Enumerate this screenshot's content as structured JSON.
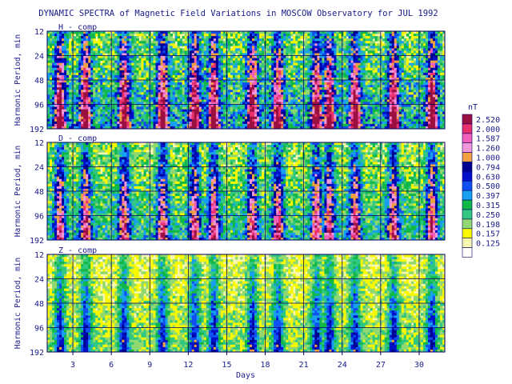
{
  "chart_data": {
    "type": "heatmap",
    "title": "DYNAMIC SPECTRA of Magnetic Field Variations in MOSCOW Observatory for JUL 1992",
    "xlabel": "Days",
    "ylabel": "Harmonic Period, min",
    "x_range": [
      1,
      32
    ],
    "x_ticks": [
      "3",
      "6",
      "9",
      "12",
      "15",
      "18",
      "21",
      "24",
      "27",
      "30"
    ],
    "x_tick_values": [
      3,
      6,
      9,
      12,
      15,
      18,
      21,
      24,
      27,
      30
    ],
    "y_scale": "log2",
    "y_ticks": [
      "12",
      "24",
      "48",
      "96",
      "192"
    ],
    "y_tick_values": [
      12,
      24,
      48,
      96,
      192
    ],
    "panels": [
      {
        "label": "H - comp",
        "activity": 1.0
      },
      {
        "label": "D - comp",
        "activity": 0.85
      },
      {
        "label": "Z - comp",
        "activity": 0.55
      }
    ],
    "colorbar": {
      "unit": "nT",
      "levels": [
        "2.520",
        "2.000",
        "1.587",
        "1.260",
        "1.000",
        "0.794",
        "0.630",
        "0.500",
        "0.397",
        "0.315",
        "0.250",
        "0.198",
        "0.157",
        "0.125"
      ],
      "colors": [
        "#9b1040",
        "#e8306c",
        "#f060b8",
        "#f098d8",
        "#f0a040",
        "#000090",
        "#0010c8",
        "#1050f0",
        "#18a0f0",
        "#10b848",
        "#30c880",
        "#90d870",
        "#f8f800",
        "#f8f8b0",
        "#ffffff"
      ]
    },
    "disturbed_days": [
      2,
      4,
      7,
      10,
      12.5,
      14,
      17,
      19,
      22,
      23,
      25,
      28,
      31
    ]
  }
}
